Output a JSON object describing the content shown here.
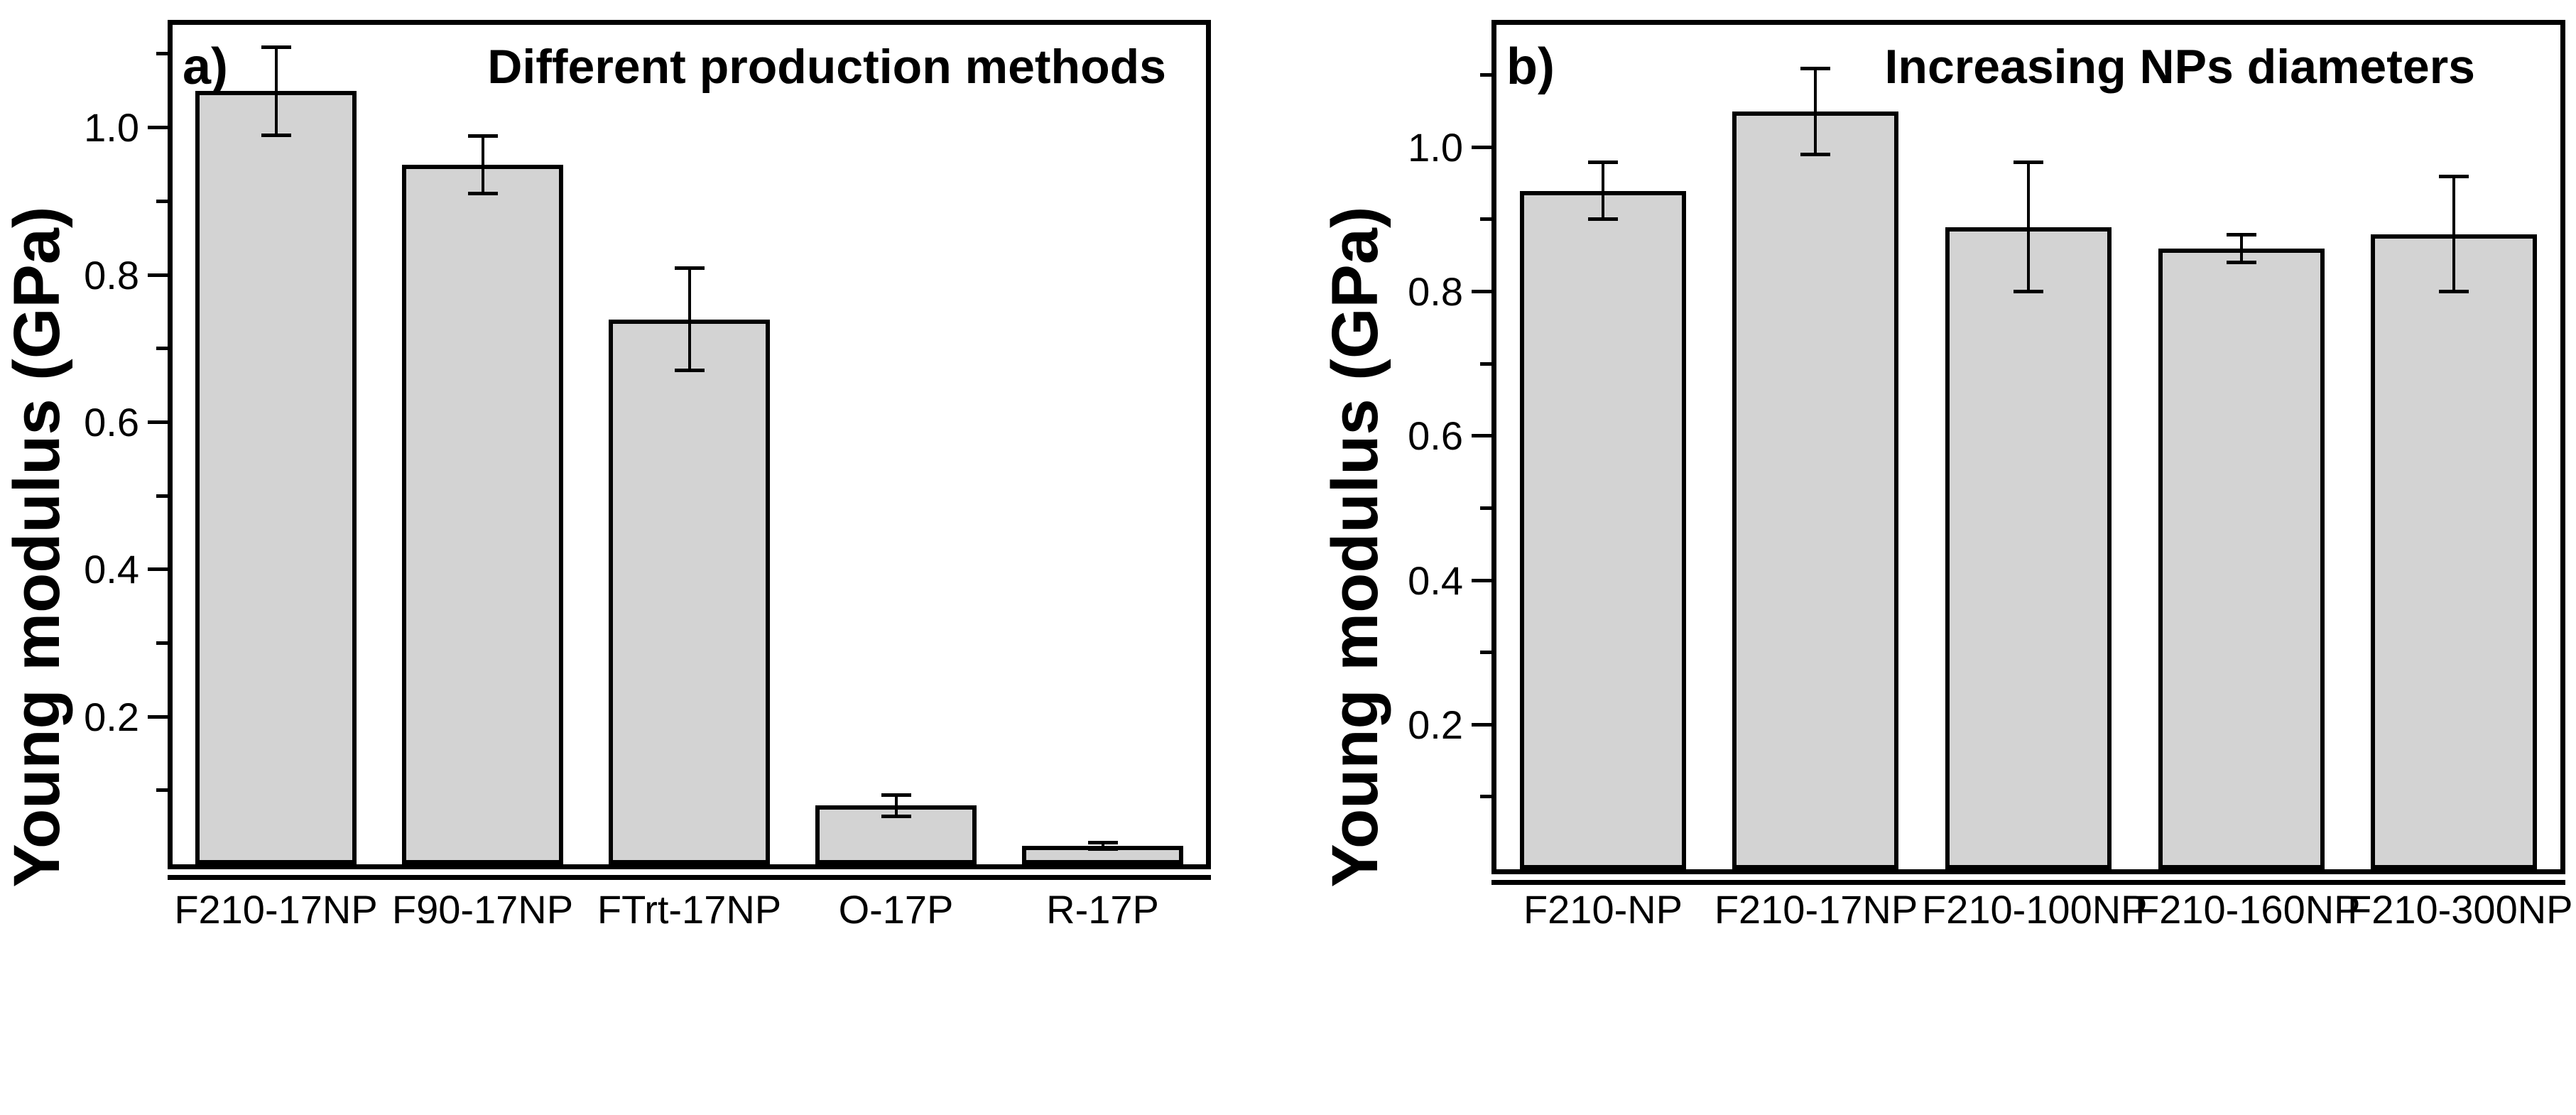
{
  "colors": {
    "background": "#ffffff",
    "bar_fill": "#d3d3d3",
    "axis_line": "#000000",
    "text": "#000000"
  },
  "chart_data": [
    {
      "type": "bar",
      "panel_label": "a)",
      "title": "Different production methods",
      "ylabel": "Young modulus (GPa)",
      "xlabel": "",
      "categories": [
        "F210-17NP",
        "F90-17NP",
        "FTrt-17NP",
        "O-17P",
        "R-17P"
      ],
      "values": [
        1.05,
        0.95,
        0.74,
        0.08,
        0.025
      ],
      "errors": [
        0.06,
        0.04,
        0.07,
        0.015,
        0.005
      ],
      "ylim": [
        0,
        1.14
      ],
      "yticks_major": [
        0.2,
        0.4,
        0.6,
        0.8,
        1.0
      ],
      "ytick_labels": [
        "0.2",
        "0.4",
        "0.6",
        "0.8",
        "1.0"
      ],
      "yticks_minor": [
        0.1,
        0.3,
        0.5,
        0.7,
        0.9,
        1.1
      ],
      "grid": false,
      "legend": "none",
      "bar_fill": "#d3d3d3",
      "bar_border": "#000000",
      "error_bar_style": "caps-both-ends"
    },
    {
      "type": "bar",
      "panel_label": "b)",
      "title": "Increasing NPs diameters",
      "ylabel": "Young modulus (GPa)",
      "xlabel": "",
      "categories": [
        "F210-NP",
        "F210-17NP",
        "F210-100NP",
        "F210-160NP",
        "F210-300NP"
      ],
      "values": [
        0.94,
        1.05,
        0.89,
        0.86,
        0.88
      ],
      "errors": [
        0.04,
        0.06,
        0.09,
        0.02,
        0.08
      ],
      "ylim": [
        0,
        1.17
      ],
      "yticks_major": [
        0.2,
        0.4,
        0.6,
        0.8,
        1.0
      ],
      "ytick_labels": [
        "0.2",
        "0.4",
        "0.6",
        "0.8",
        "1.0"
      ],
      "yticks_minor": [
        0.1,
        0.3,
        0.5,
        0.7,
        0.9,
        1.1
      ],
      "grid": false,
      "legend": "none",
      "bar_fill": "#d3d3d3",
      "bar_border": "#000000",
      "error_bar_style": "caps-both-ends"
    }
  ]
}
